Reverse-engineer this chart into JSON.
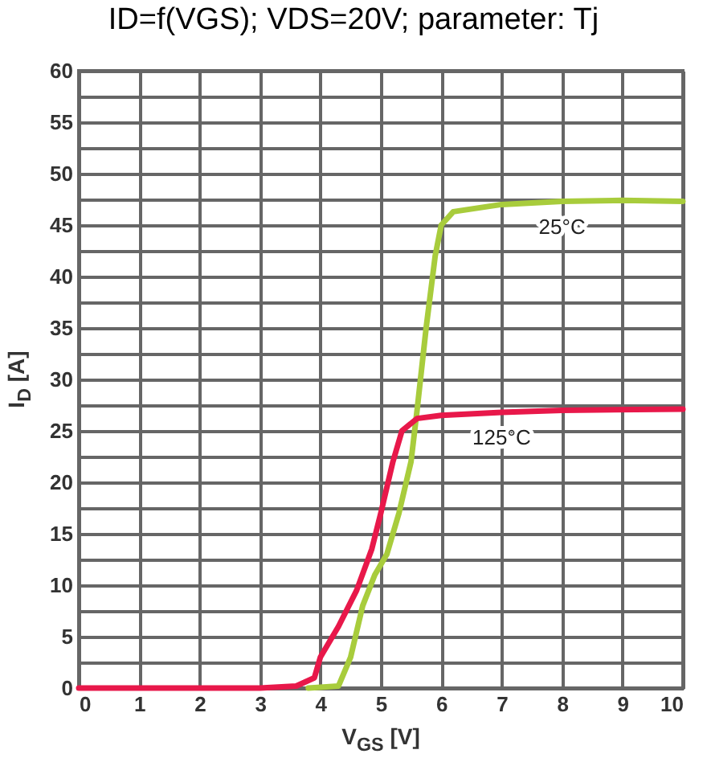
{
  "chart_data": {
    "type": "line",
    "title": "ID=f(VGS); VDS=20V; parameter: Tj",
    "xlabel": "V$_{GS}$ [V]",
    "ylabel": "I$_{D}$ [A]",
    "xlim": [
      0,
      10
    ],
    "xticks": [
      0,
      1,
      2,
      3,
      4,
      5,
      6,
      7,
      8,
      9,
      10
    ],
    "ylim": [
      0,
      60
    ],
    "yticks": [
      0,
      {
        "value": 2.5,
        "label": null
      },
      5,
      {
        "value": 7.5,
        "label": null
      },
      10,
      {
        "value": 12.5,
        "label": null
      },
      15,
      {
        "value": 17.5,
        "label": null
      },
      20,
      {
        "value": 22.5,
        "label": null
      },
      25,
      {
        "value": 27.5,
        "label": null
      },
      30,
      {
        "value": 32.5,
        "label": null
      },
      35,
      {
        "value": 37.5,
        "label": null
      },
      40,
      {
        "value": 42.5,
        "label": null
      },
      45,
      {
        "value": 47.5,
        "label": null
      },
      50,
      {
        "value": 52.5,
        "label": null
      },
      55,
      {
        "value": 57.5,
        "label": null
      },
      60
    ],
    "grid": true,
    "series": [
      {
        "name": "25°C",
        "color": "#a8cc3c",
        "x": [
          3.8,
          4.3,
          4.5,
          4.7,
          4.9,
          5.1,
          5.3,
          5.5,
          5.6,
          5.75,
          5.9,
          6.0,
          6.2,
          7,
          8,
          9,
          10
        ],
        "values": [
          0,
          0.2,
          3,
          8,
          11,
          13,
          17,
          22,
          27,
          35,
          42,
          45,
          46.3,
          47,
          47.3,
          47.4,
          47.3
        ]
      },
      {
        "name": "125°C",
        "color": "#e8184a",
        "x": [
          0,
          3,
          3.6,
          3.9,
          4.0,
          4.3,
          4.6,
          4.85,
          5.0,
          5.2,
          5.35,
          5.6,
          6,
          7,
          8,
          10
        ],
        "values": [
          0,
          0,
          0.2,
          1,
          3,
          6,
          9.5,
          13.5,
          17,
          22,
          25,
          26.2,
          26.5,
          26.8,
          27,
          27.1
        ]
      }
    ]
  }
}
